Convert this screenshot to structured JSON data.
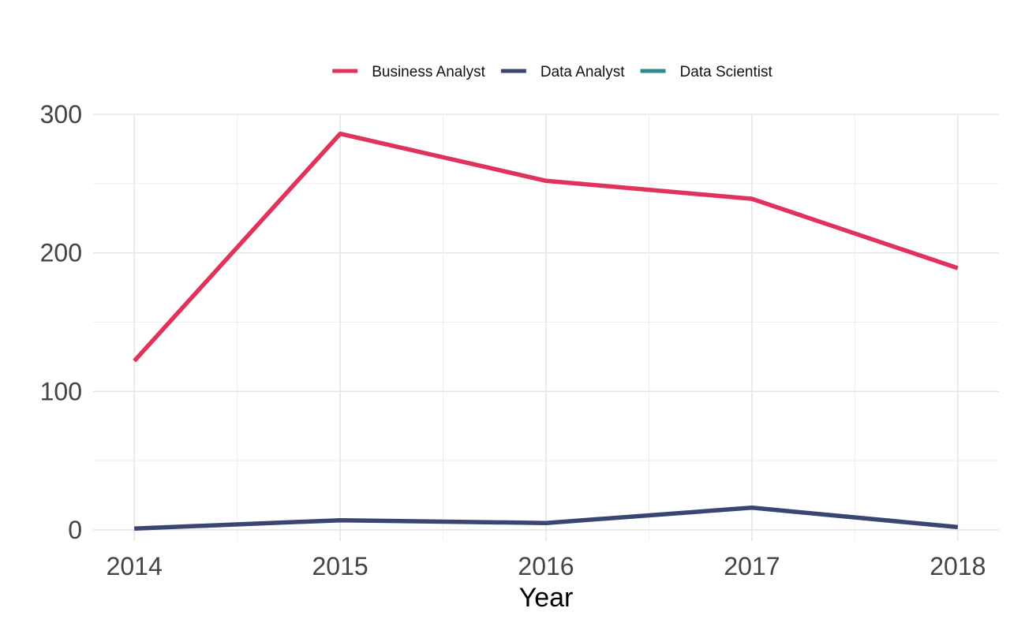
{
  "chart_data": {
    "type": "line",
    "title": "",
    "xlabel": "Year",
    "ylabel": "",
    "x": [
      2014,
      2015,
      2016,
      2017,
      2018
    ],
    "x_ticks": [
      "2014",
      "2015",
      "2016",
      "2017",
      "2018"
    ],
    "xlim": [
      2013.8,
      2018.2
    ],
    "ylim": [
      -8,
      300
    ],
    "y_ticks": [
      0,
      100,
      200,
      300
    ],
    "y_tick_labels": [
      "0",
      "100",
      "200",
      "300"
    ],
    "grid": true,
    "legend_position": "top",
    "series": [
      {
        "name": "Business Analyst",
        "color": "#E0325A",
        "values": [
          122,
          286,
          252,
          239,
          189
        ]
      },
      {
        "name": "Data Analyst",
        "color": "#3A4672",
        "values": [
          1,
          7,
          5,
          16,
          2
        ]
      },
      {
        "name": "Data Scientist",
        "color": "#2E8A8C",
        "values": [
          null,
          null,
          null,
          null,
          null
        ]
      }
    ]
  }
}
